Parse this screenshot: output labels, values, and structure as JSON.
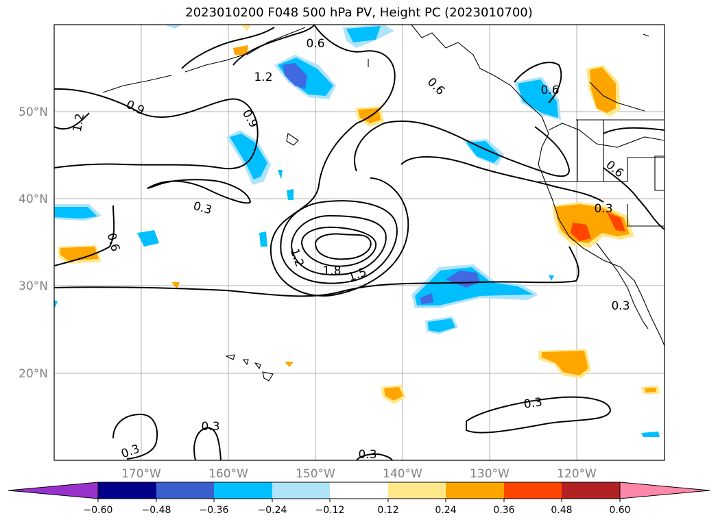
{
  "title": "2023010200 F048 500 hPa PV, Height PC (2023010700)",
  "map": {
    "lon_range": [
      -180,
      -110
    ],
    "lat_range": [
      10,
      60
    ],
    "lon_labels": [
      "170°W",
      "160°W",
      "150°W",
      "140°W",
      "130°W",
      "120°W"
    ],
    "lat_labels": [
      "50°N",
      "40°N",
      "30°N",
      "20°N"
    ],
    "contour_labels": [
      "0.6",
      "1.2",
      "0.9",
      "1.2",
      "0.9",
      "0.6",
      "0.6",
      "0.6",
      "0.3",
      "0.3",
      "0.6",
      "1.2",
      "1.8",
      "1.5",
      "0.3",
      "0.3",
      "0.3",
      "0.3",
      "0.3"
    ],
    "fill_levels": [
      {
        "level": "-0.60",
        "color": "#4169e1"
      },
      {
        "level": "-0.48",
        "color": "#4169e1"
      },
      {
        "level": "-0.36",
        "color": "#00bfff"
      },
      {
        "level": "-0.24",
        "color": "#aee3fa"
      },
      {
        "level": "0.24",
        "color": "#ffa500"
      },
      {
        "level": "0.36",
        "color": "#ff4500"
      },
      {
        "level": "0.12",
        "color": "#ffe88a"
      }
    ]
  },
  "colorbar": {
    "ticks": [
      "−0.60",
      "−0.48",
      "−0.36",
      "−0.24",
      "−0.12",
      "0.12",
      "0.24",
      "0.36",
      "0.48",
      "0.60"
    ],
    "colors": [
      "#9932cc",
      "#9932cc",
      "#00008b",
      "#3a5fcd",
      "#00bfff",
      "#aee3fa",
      "#ffffff",
      "#ffe88a",
      "#ffa500",
      "#ff4500",
      "#b22222",
      "#ff88aa",
      "#ff88aa"
    ]
  }
}
